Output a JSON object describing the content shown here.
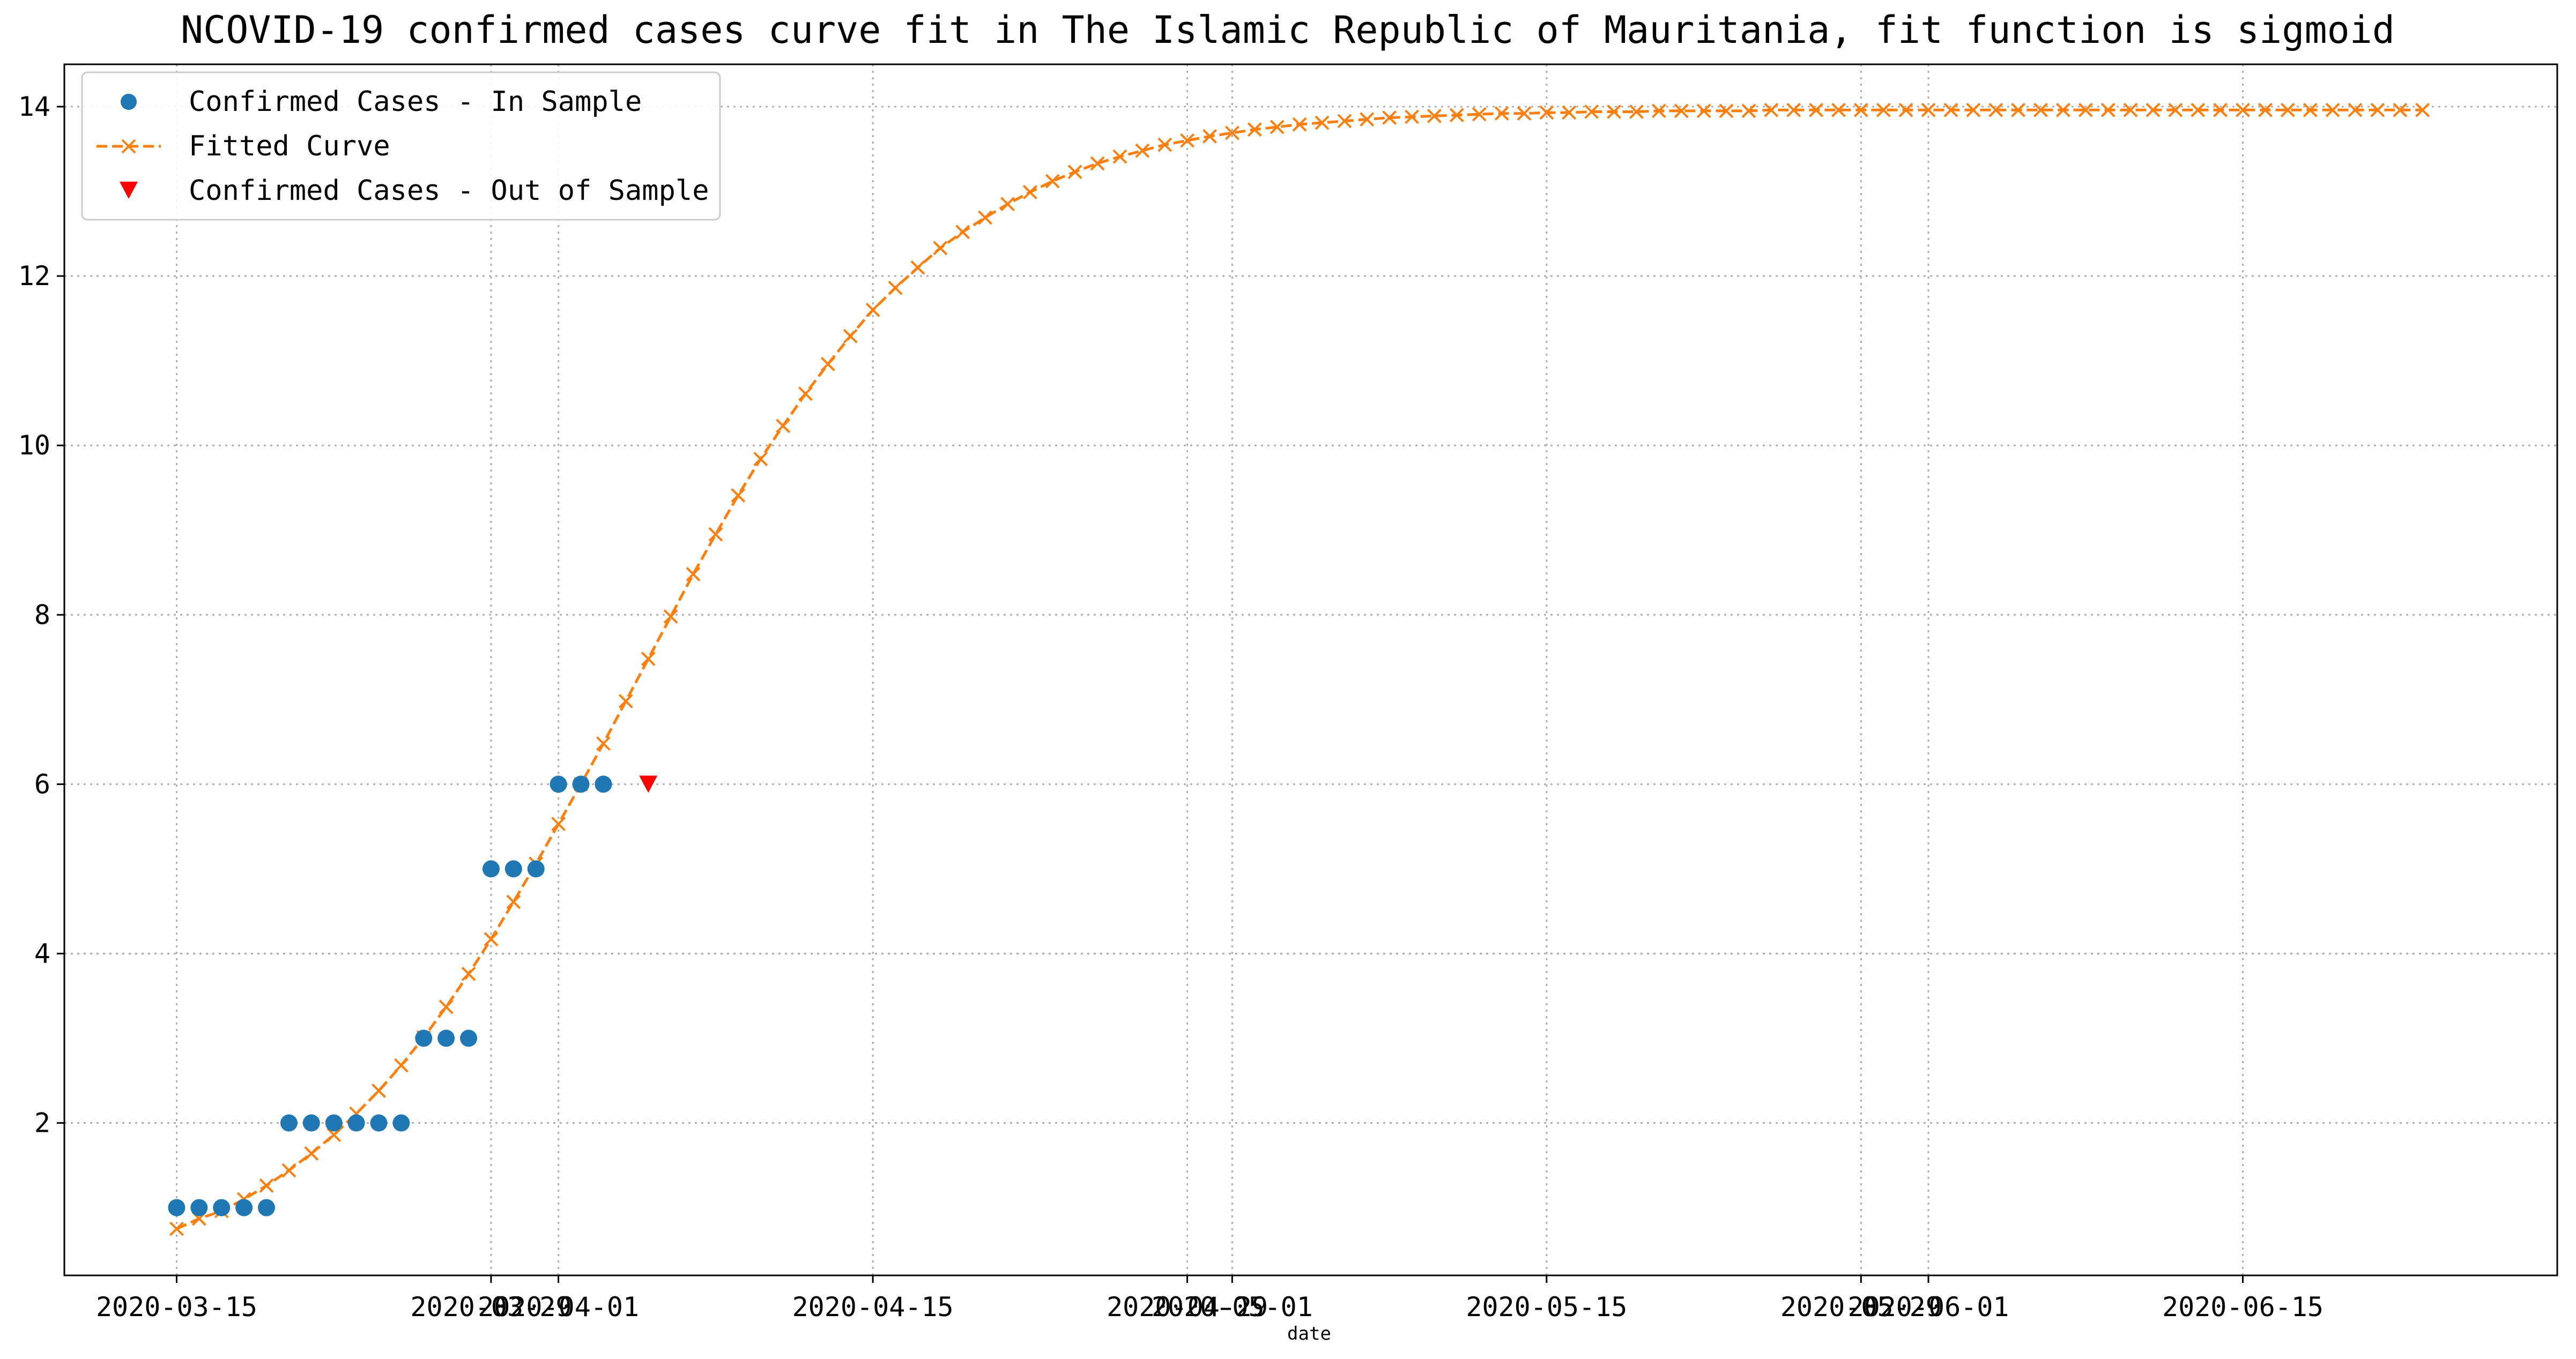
{
  "chart_data": {
    "type": "line",
    "title": "NCOVID-19 confirmed cases curve fit in The Islamic Republic of Mauritania, fit function is sigmoid",
    "xlabel": "date",
    "ylabel": "",
    "xlim": [
      "2020-03-10",
      "2020-06-29"
    ],
    "ylim": [
      0.2,
      14.5
    ],
    "grid": true,
    "legend_position": "top-left",
    "x_ticks": [
      "2020-03-15",
      "2020-03-29",
      "2020-04-01",
      "2020-04-15",
      "2020-04-29",
      "2020-05-01",
      "2020-05-15",
      "2020-05-29",
      "2020-06-01",
      "2020-06-15"
    ],
    "x_tick_labels": [
      "2020-03-15",
      "2020-03-29",
      "2020-04-01",
      "2020-04-15",
      "2020-04-29",
      "2020-05-01",
      "2020-05-15",
      "2020-05-29",
      "2020-06-01",
      "2020-06-15"
    ],
    "y_ticks": [
      2,
      4,
      6,
      8,
      10,
      12,
      14
    ],
    "y_tick_labels": [
      "2",
      "4",
      "6",
      "8",
      "10",
      "12",
      "14"
    ],
    "series": [
      {
        "name": "Confirmed Cases - In Sample",
        "style": "dots",
        "color": "#1f77b4",
        "points": [
          [
            "2020-03-15",
            1
          ],
          [
            "2020-03-16",
            1
          ],
          [
            "2020-03-17",
            1
          ],
          [
            "2020-03-18",
            1
          ],
          [
            "2020-03-19",
            1
          ],
          [
            "2020-03-20",
            2
          ],
          [
            "2020-03-21",
            2
          ],
          [
            "2020-03-22",
            2
          ],
          [
            "2020-03-23",
            2
          ],
          [
            "2020-03-24",
            2
          ],
          [
            "2020-03-25",
            2
          ],
          [
            "2020-03-26",
            3
          ],
          [
            "2020-03-27",
            3
          ],
          [
            "2020-03-28",
            3
          ],
          [
            "2020-03-29",
            5
          ],
          [
            "2020-03-30",
            5
          ],
          [
            "2020-03-31",
            5
          ],
          [
            "2020-04-01",
            6
          ],
          [
            "2020-04-02",
            6
          ],
          [
            "2020-04-03",
            6
          ]
        ]
      },
      {
        "name": "Fitted Curve",
        "style": "dashed-x",
        "color": "#ff7f0e",
        "start_date": "2020-03-15",
        "values": [
          0.75,
          0.87,
          0.96,
          1.1,
          1.26,
          1.44,
          1.64,
          1.86,
          2.11,
          2.38,
          2.68,
          3.01,
          3.37,
          3.76,
          4.17,
          4.61,
          5.06,
          5.53,
          6.0,
          6.48,
          6.98,
          7.48,
          7.98,
          8.48,
          8.95,
          9.41,
          9.84,
          10.23,
          10.61,
          10.96,
          11.29,
          11.6,
          11.86,
          12.1,
          12.33,
          12.52,
          12.69,
          12.85,
          12.99,
          13.12,
          13.23,
          13.33,
          13.41,
          13.48,
          13.55,
          13.6,
          13.65,
          13.69,
          13.73,
          13.76,
          13.79,
          13.81,
          13.83,
          13.85,
          13.87,
          13.88,
          13.89,
          13.9,
          13.91,
          13.92,
          13.92,
          13.93,
          13.93,
          13.94,
          13.94,
          13.94,
          13.95,
          13.95,
          13.95,
          13.95,
          13.95,
          13.96,
          13.96,
          13.96,
          13.96,
          13.96,
          13.96,
          13.96,
          13.96,
          13.96,
          13.96,
          13.96,
          13.96,
          13.96,
          13.96,
          13.96,
          13.96,
          13.96,
          13.96,
          13.96,
          13.96,
          13.96,
          13.96,
          13.96,
          13.96,
          13.96,
          13.96,
          13.96,
          13.96,
          13.96,
          13.96
        ]
      },
      {
        "name": "Confirmed Cases - Out of Sample",
        "style": "triangle-down",
        "color": "#ff0000",
        "points": [
          [
            "2020-04-05",
            6
          ]
        ]
      }
    ]
  }
}
